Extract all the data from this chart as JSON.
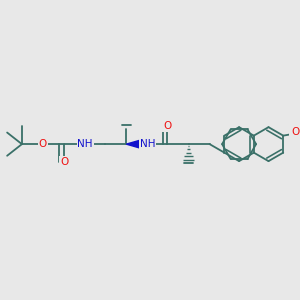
{
  "bg_color": "#e8e8e8",
  "bond_color": "#3a7068",
  "bond_width": 1.3,
  "atom_colors": {
    "O": "#ee1111",
    "N": "#1111cc",
    "C": "#3a7068"
  },
  "font_size": 7.5,
  "wedge_color": "#1111cc"
}
